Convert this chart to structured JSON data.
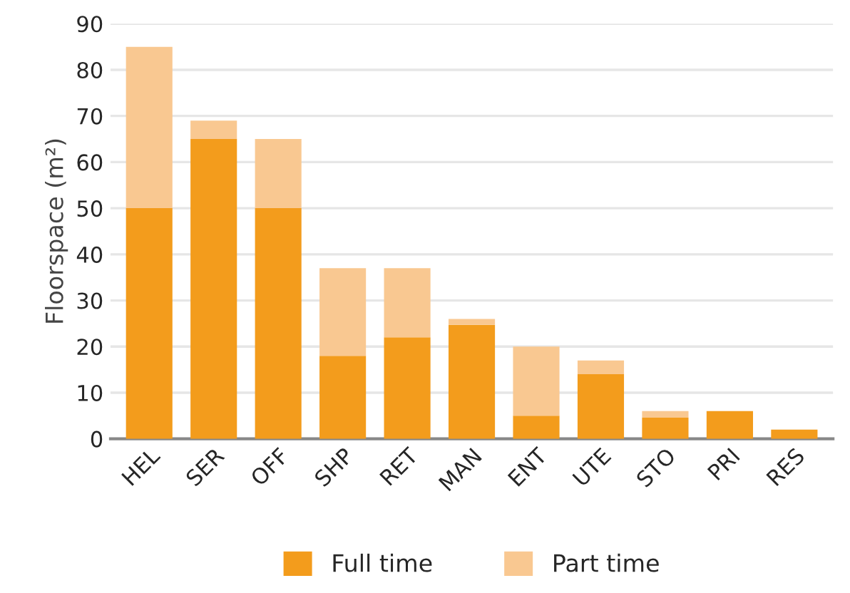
{
  "chart_data": {
    "type": "bar",
    "stacked": true,
    "ylabel": "Floorspace (m²)",
    "categories": [
      "HEL",
      "SER",
      "OFF",
      "SHP",
      "RET",
      "MAN",
      "ENT",
      "UTE",
      "STO",
      "PRI",
      "RES"
    ],
    "series": [
      {
        "name": "Full time",
        "color": "#f39c1c",
        "values": [
          50,
          65,
          50,
          18,
          22,
          24.7,
          5,
          14,
          4.6,
          6,
          2
        ]
      },
      {
        "name": "Part time",
        "color": "#f9c891",
        "values": [
          35,
          4,
          15,
          19,
          15,
          1.3,
          15,
          3,
          1.4,
          0,
          0
        ]
      }
    ],
    "ylim": [
      0,
      90
    ],
    "yticks": [
      0,
      10,
      20,
      30,
      40,
      50,
      60,
      70,
      80,
      90
    ],
    "grid": "y",
    "legend": "bottom"
  }
}
